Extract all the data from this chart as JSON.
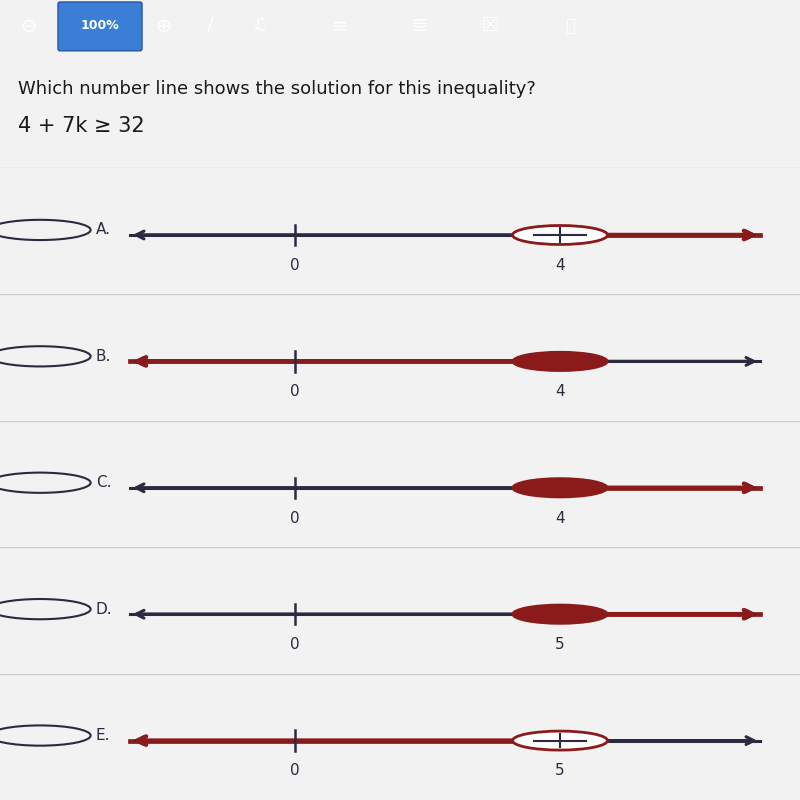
{
  "title": "Which number line shows the solution for this inequality?",
  "inequality": "4 + 7k ≥ 32",
  "bg_color": "#f2f2f2",
  "toolbar_color": "#6b6b8a",
  "toolbar_blue": "#3a7fd5",
  "header_bg": "#ffffff",
  "row_bg_even": "#f5f5f5",
  "row_bg_odd": "#ebebeb",
  "border_color": "#cccccc",
  "dark": "#2b2b40",
  "red": "#8b1a1a",
  "radio_color": "#2b2b40",
  "text_color": "#1a1a1a",
  "options": [
    {
      "label": "A.",
      "tick_val": 4,
      "tick_str": "4",
      "filled": false,
      "red_dir": "right"
    },
    {
      "label": "B.",
      "tick_val": 4,
      "tick_str": "4",
      "filled": true,
      "red_dir": "left"
    },
    {
      "label": "C.",
      "tick_val": 4,
      "tick_str": "4",
      "filled": true,
      "red_dir": "right"
    },
    {
      "label": "D.",
      "tick_val": 5,
      "tick_str": "5",
      "filled": true,
      "red_dir": "right"
    },
    {
      "label": "E.",
      "tick_val": 5,
      "tick_str": "5",
      "filled": false,
      "red_dir": "left"
    }
  ]
}
